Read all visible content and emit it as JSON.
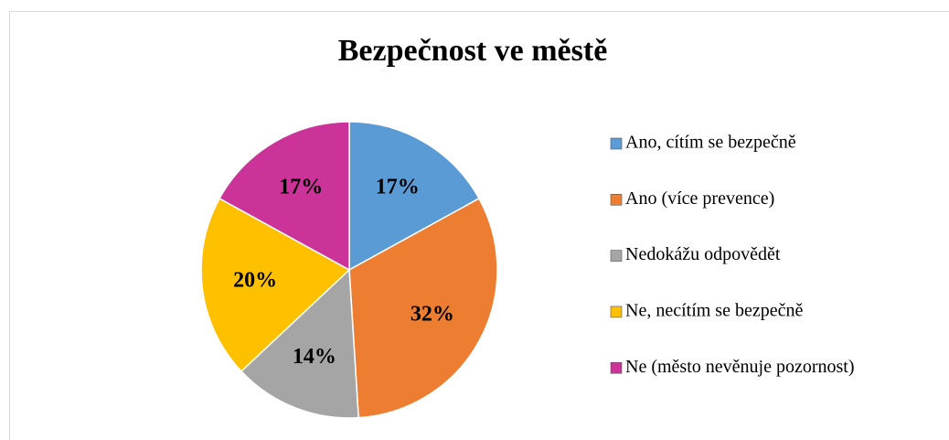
{
  "chart_data": {
    "type": "pie",
    "title": "Bezpečnost ve městě",
    "categories": [
      "Ano, cítím se bezpečně",
      "Ano (více prevence)",
      "Nedokážu odpovědět",
      "Ne, necítím se bezpečně",
      "Ne (město nevěnuje pozornost)"
    ],
    "values": [
      17,
      32,
      14,
      20,
      17
    ],
    "value_labels": [
      "17%",
      "32%",
      "14%",
      "20%",
      "17%"
    ],
    "colors": [
      "#5b9bd5",
      "#ed7d31",
      "#a5a5a5",
      "#ffc000",
      "#cc3399"
    ],
    "legend": "right"
  }
}
